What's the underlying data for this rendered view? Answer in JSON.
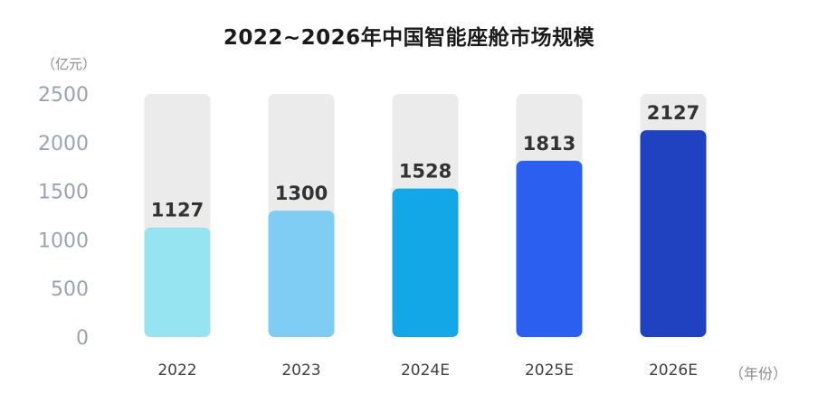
{
  "chart_data": {
    "type": "bar",
    "title": "2022~2026年中国智能座舱市场规模",
    "ylabel": "（亿元）",
    "xlabel": "（年份）",
    "categories": [
      "2022",
      "2023",
      "2024E",
      "2025E",
      "2026E"
    ],
    "values": [
      1127,
      1300,
      1528,
      1813,
      2127
    ],
    "ylim": [
      0,
      2500
    ],
    "yticks": [
      "0",
      "500",
      "1000",
      "1500",
      "2000",
      "2500"
    ],
    "data_labels": [
      "1127",
      "1300",
      "1528",
      "1813",
      "2127"
    ],
    "background_bar_max": 2500,
    "grid": false,
    "legend": "none",
    "colors": [
      "#96e3f2",
      "#7fcdf4",
      "#14a7e8",
      "#2b5ff0",
      "#2042c0"
    ],
    "track_color": "#ebebeb",
    "tick_color": "#98a4b3",
    "category_color": "#404040",
    "label_color": "#333333"
  }
}
